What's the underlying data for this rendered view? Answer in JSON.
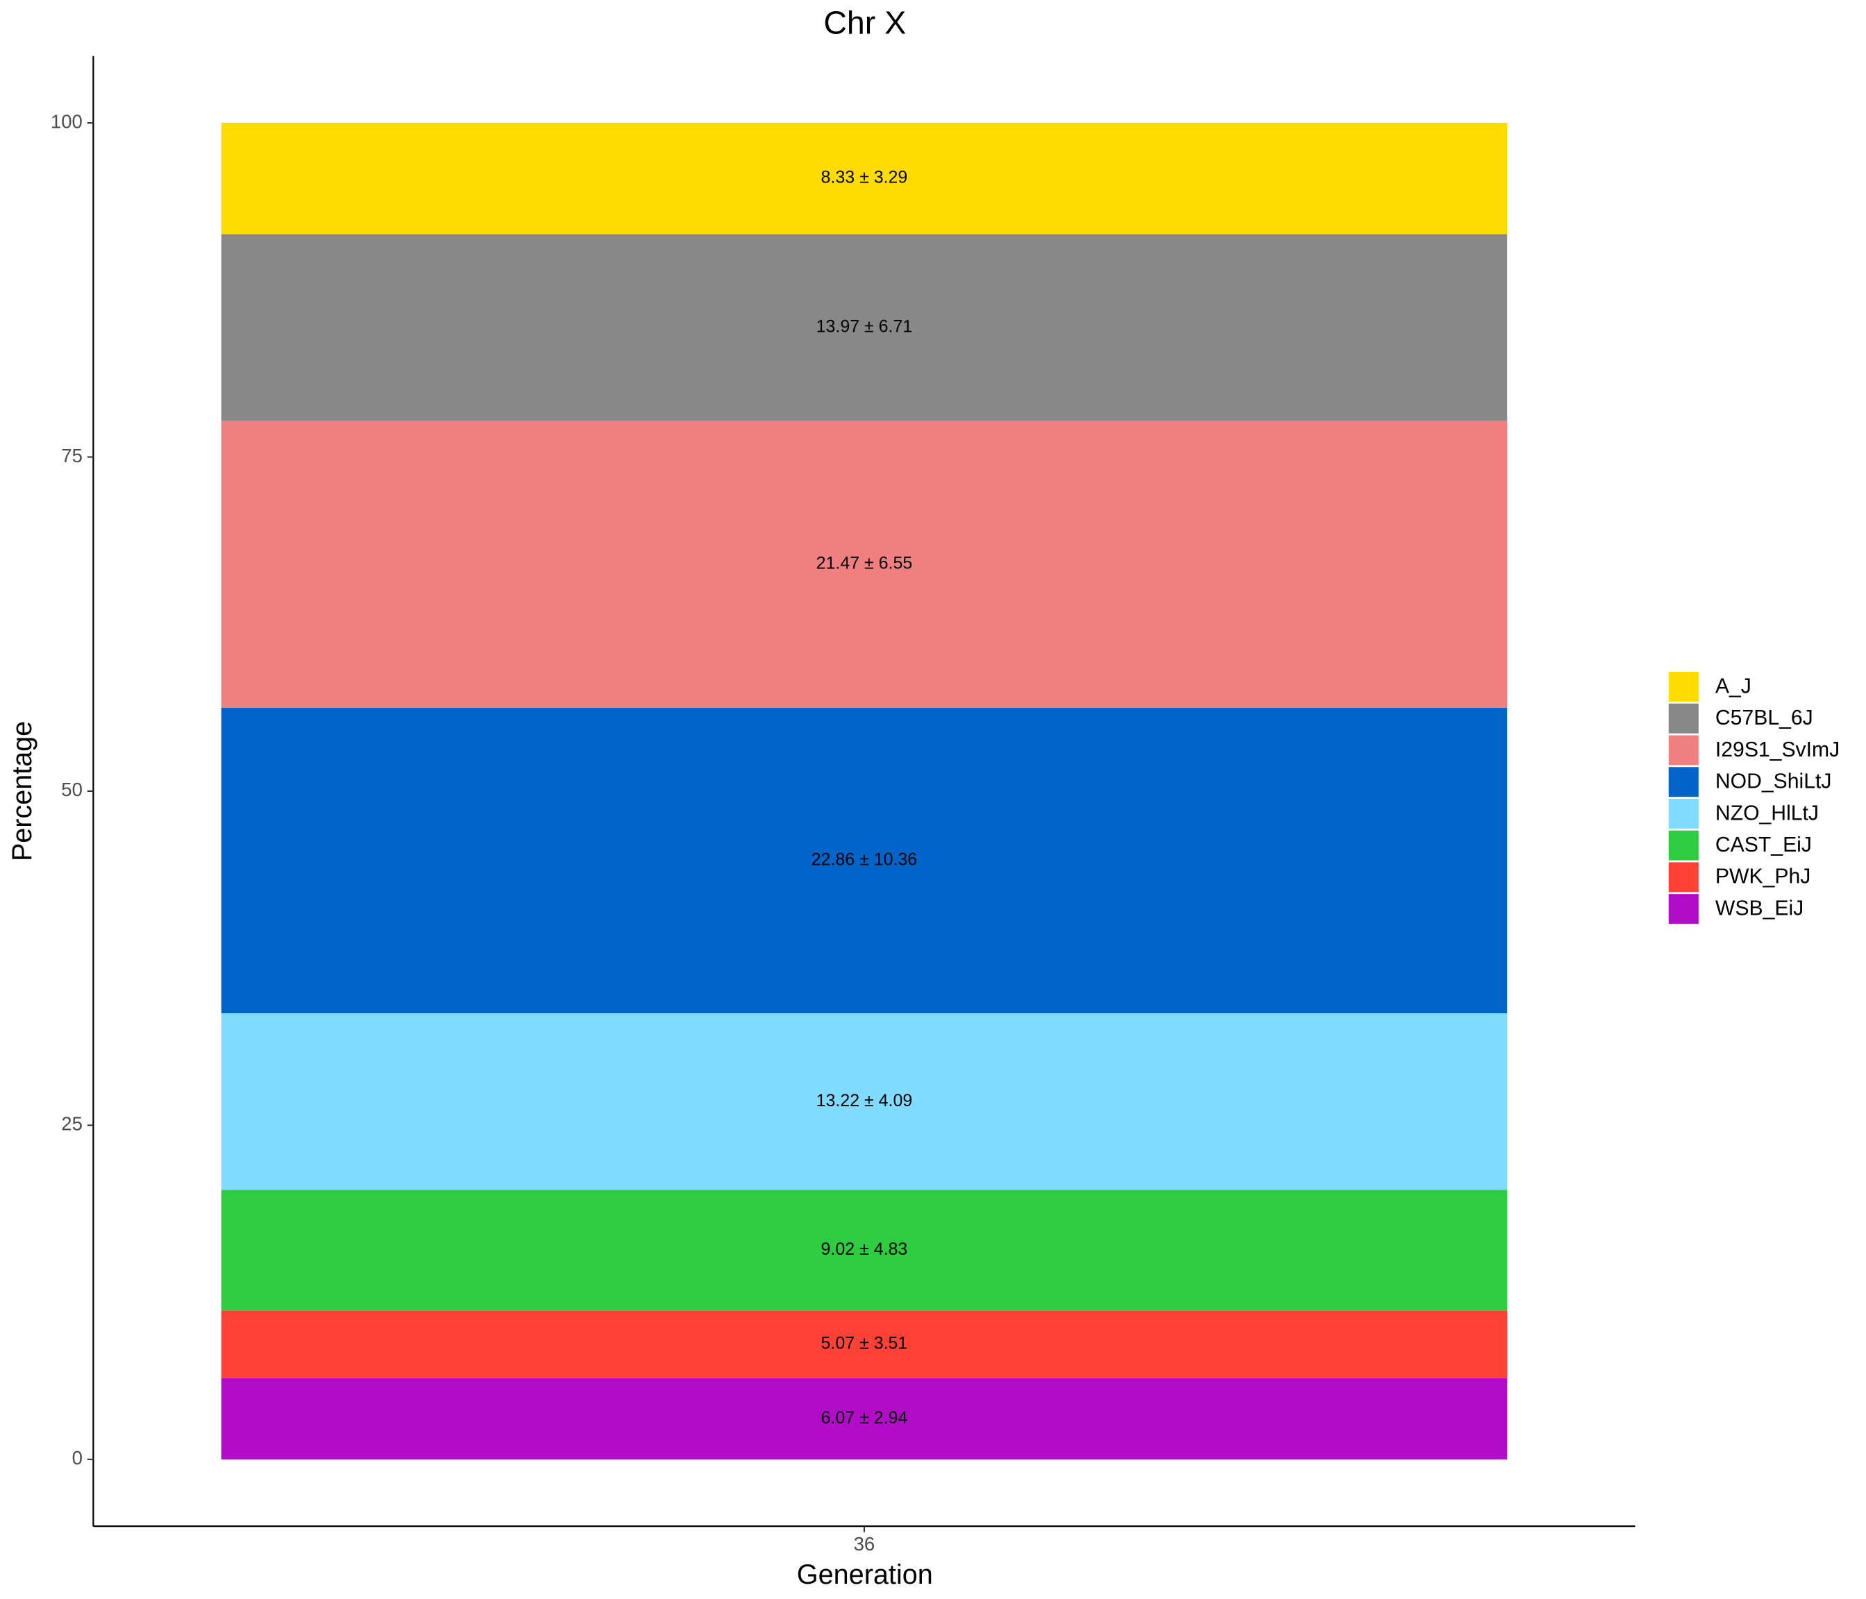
{
  "chart_data": {
    "type": "stacked_bar",
    "title": "Chr X",
    "x_label": "Generation",
    "y_label": "Percentage",
    "categories": [
      "36"
    ],
    "series": [
      {
        "name": "A_J",
        "color": "#FFDC00",
        "values": [
          8.33
        ],
        "value_labels": [
          "8.33 ± 3.29"
        ]
      },
      {
        "name": "C57BL_6J",
        "color": "#888888",
        "values": [
          13.97
        ],
        "value_labels": [
          "13.97 ± 6.71"
        ]
      },
      {
        "name": "I29S1_SvImJ",
        "color": "#F08080",
        "values": [
          21.47
        ],
        "value_labels": [
          "21.47 ± 6.55"
        ]
      },
      {
        "name": "NOD_ShiLtJ",
        "color": "#0064C9",
        "values": [
          22.86
        ],
        "value_labels": [
          "22.86 ± 10.36"
        ]
      },
      {
        "name": "NZO_HlLtJ",
        "color": "#7FDBFF",
        "values": [
          13.22
        ],
        "value_labels": [
          "13.22 ± 4.09"
        ]
      },
      {
        "name": "CAST_EiJ",
        "color": "#2ECC40",
        "values": [
          9.02
        ],
        "value_labels": [
          "9.02 ± 4.83"
        ]
      },
      {
        "name": "PWK_PhJ",
        "color": "#FF4136",
        "values": [
          5.07
        ],
        "value_labels": [
          "5.07 ± 3.51"
        ]
      },
      {
        "name": "WSB_EiJ",
        "color": "#B10DC9",
        "values": [
          6.07
        ],
        "value_labels": [
          "6.07 ± 2.94"
        ]
      }
    ],
    "ylim": [
      -5,
      105
    ],
    "yticks": [
      0,
      25,
      50,
      75,
      100
    ],
    "grid": false,
    "legend": "right"
  }
}
